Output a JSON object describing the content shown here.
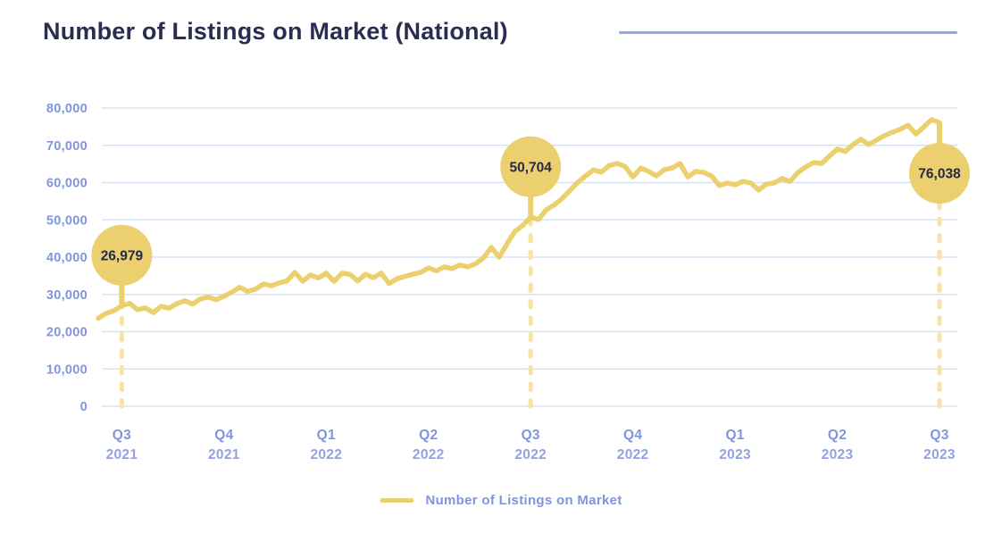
{
  "header": {
    "title": "Number of Listings on Market (National)"
  },
  "legend": {
    "label": "Number of Listings on Market"
  },
  "colors": {
    "title_text": "#2a2d50",
    "accent_rule": "#8ea9ea",
    "line": "#ecd06e",
    "dash": "#f5e3a8",
    "bubble_fill": "#eccf6f",
    "bubble_text": "#252a47",
    "axis_label": "#8095de",
    "year_label": "#90a2e5",
    "gridline": "#d9e2f5"
  },
  "chart_data": {
    "type": "line",
    "title": "Number of Listings on Market (National)",
    "xlabel": "",
    "ylabel": "",
    "ylim": [
      0,
      80000
    ],
    "y_tick_step": 10000,
    "grid": "horizontal",
    "legend_position": "bottom",
    "y_tick_labels": [
      "80,000",
      "70,000",
      "60,000",
      "50,000",
      "40,000",
      "30,000",
      "20,000",
      "10,000",
      "0"
    ],
    "x_ticks": [
      {
        "quarter": "Q3",
        "year": "2021",
        "index": 3
      },
      {
        "quarter": "Q4",
        "year": "2021",
        "index": 16
      },
      {
        "quarter": "Q1",
        "year": "2022",
        "index": 29
      },
      {
        "quarter": "Q2",
        "year": "2022",
        "index": 42
      },
      {
        "quarter": "Q3",
        "year": "2022",
        "index": 55
      },
      {
        "quarter": "Q4",
        "year": "2022",
        "index": 68
      },
      {
        "quarter": "Q1",
        "year": "2023",
        "index": 81
      },
      {
        "quarter": "Q2",
        "year": "2023",
        "index": 94
      },
      {
        "quarter": "Q3",
        "year": "2023",
        "index": 107
      }
    ],
    "series": [
      {
        "name": "Number of Listings on Market",
        "cadence": "weekly",
        "values": [
          23600,
          24900,
          25600,
          26979,
          27600,
          25900,
          26400,
          25100,
          26800,
          26300,
          27500,
          28300,
          27400,
          28800,
          29300,
          28600,
          29500,
          30600,
          31900,
          30800,
          31400,
          32800,
          32300,
          33100,
          33600,
          35900,
          33500,
          35200,
          34400,
          35700,
          33500,
          35700,
          35400,
          33600,
          35400,
          34500,
          35700,
          32900,
          34200,
          34800,
          35400,
          35900,
          37100,
          36300,
          37400,
          36900,
          37900,
          37400,
          38200,
          39800,
          42600,
          40000,
          43600,
          46900,
          48500,
          50704,
          50100,
          52700,
          54000,
          55700,
          57900,
          60100,
          61800,
          63400,
          62800,
          64600,
          65100,
          64300,
          61500,
          63900,
          63000,
          61800,
          63500,
          63900,
          65100,
          61500,
          63000,
          62700,
          61800,
          59200,
          59900,
          59400,
          60300,
          59900,
          58000,
          59600,
          59900,
          61100,
          60300,
          62700,
          64200,
          65400,
          65100,
          67100,
          69000,
          68300,
          70200,
          71600,
          70200,
          71400,
          72600,
          73500,
          74300,
          75400,
          73000,
          74900,
          76900,
          76038
        ]
      }
    ],
    "annotations": [
      {
        "index": 3,
        "value": 26979,
        "label": "26,979",
        "side": "above"
      },
      {
        "index": 55,
        "value": 50704,
        "label": "50,704",
        "side": "above"
      },
      {
        "index": 107,
        "value": 76038,
        "label": "76,038",
        "side": "below"
      }
    ]
  }
}
